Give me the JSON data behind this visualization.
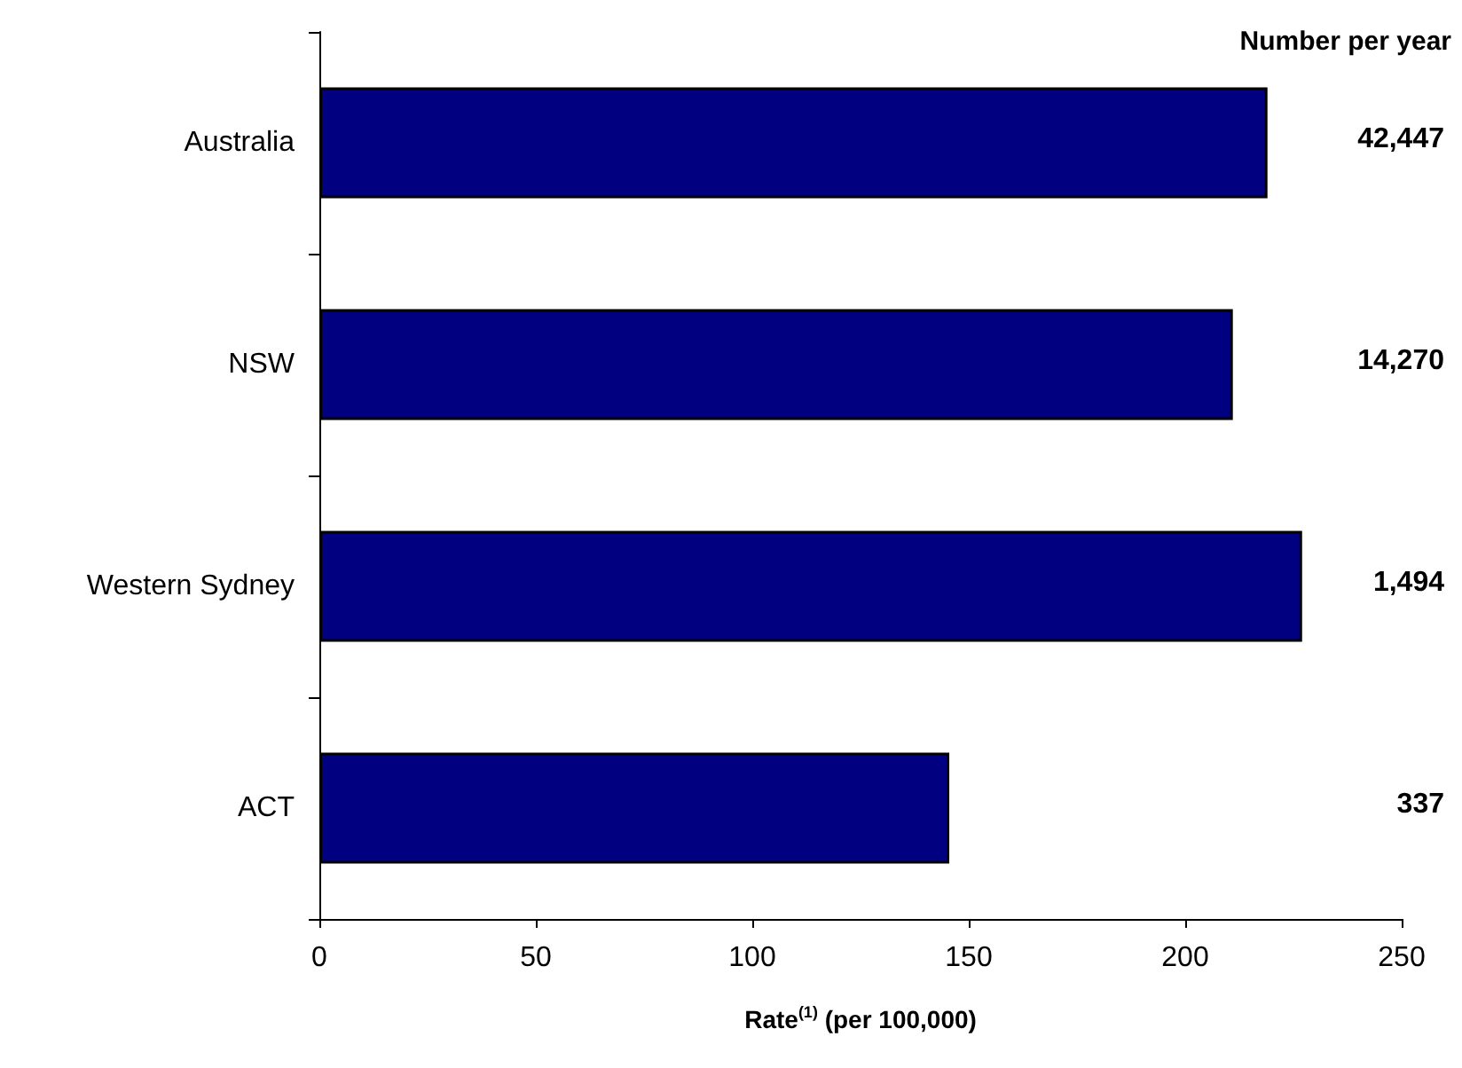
{
  "chart_data": {
    "type": "bar",
    "orientation": "horizontal",
    "categories": [
      "Australia",
      "NSW",
      "Western Sydney",
      "ACT"
    ],
    "values": [
      219,
      211,
      227,
      145.5
    ],
    "color": "#000080",
    "xlim": [
      0,
      250
    ],
    "xticks": [
      0,
      50,
      100,
      150,
      200,
      250
    ],
    "xlabel": "Rate$^{(1)}$ (per 100,000)",
    "grid": false,
    "annotations": [
      "Number per year",
      "42,447",
      "14,270",
      "1,494",
      "337"
    ]
  }
}
